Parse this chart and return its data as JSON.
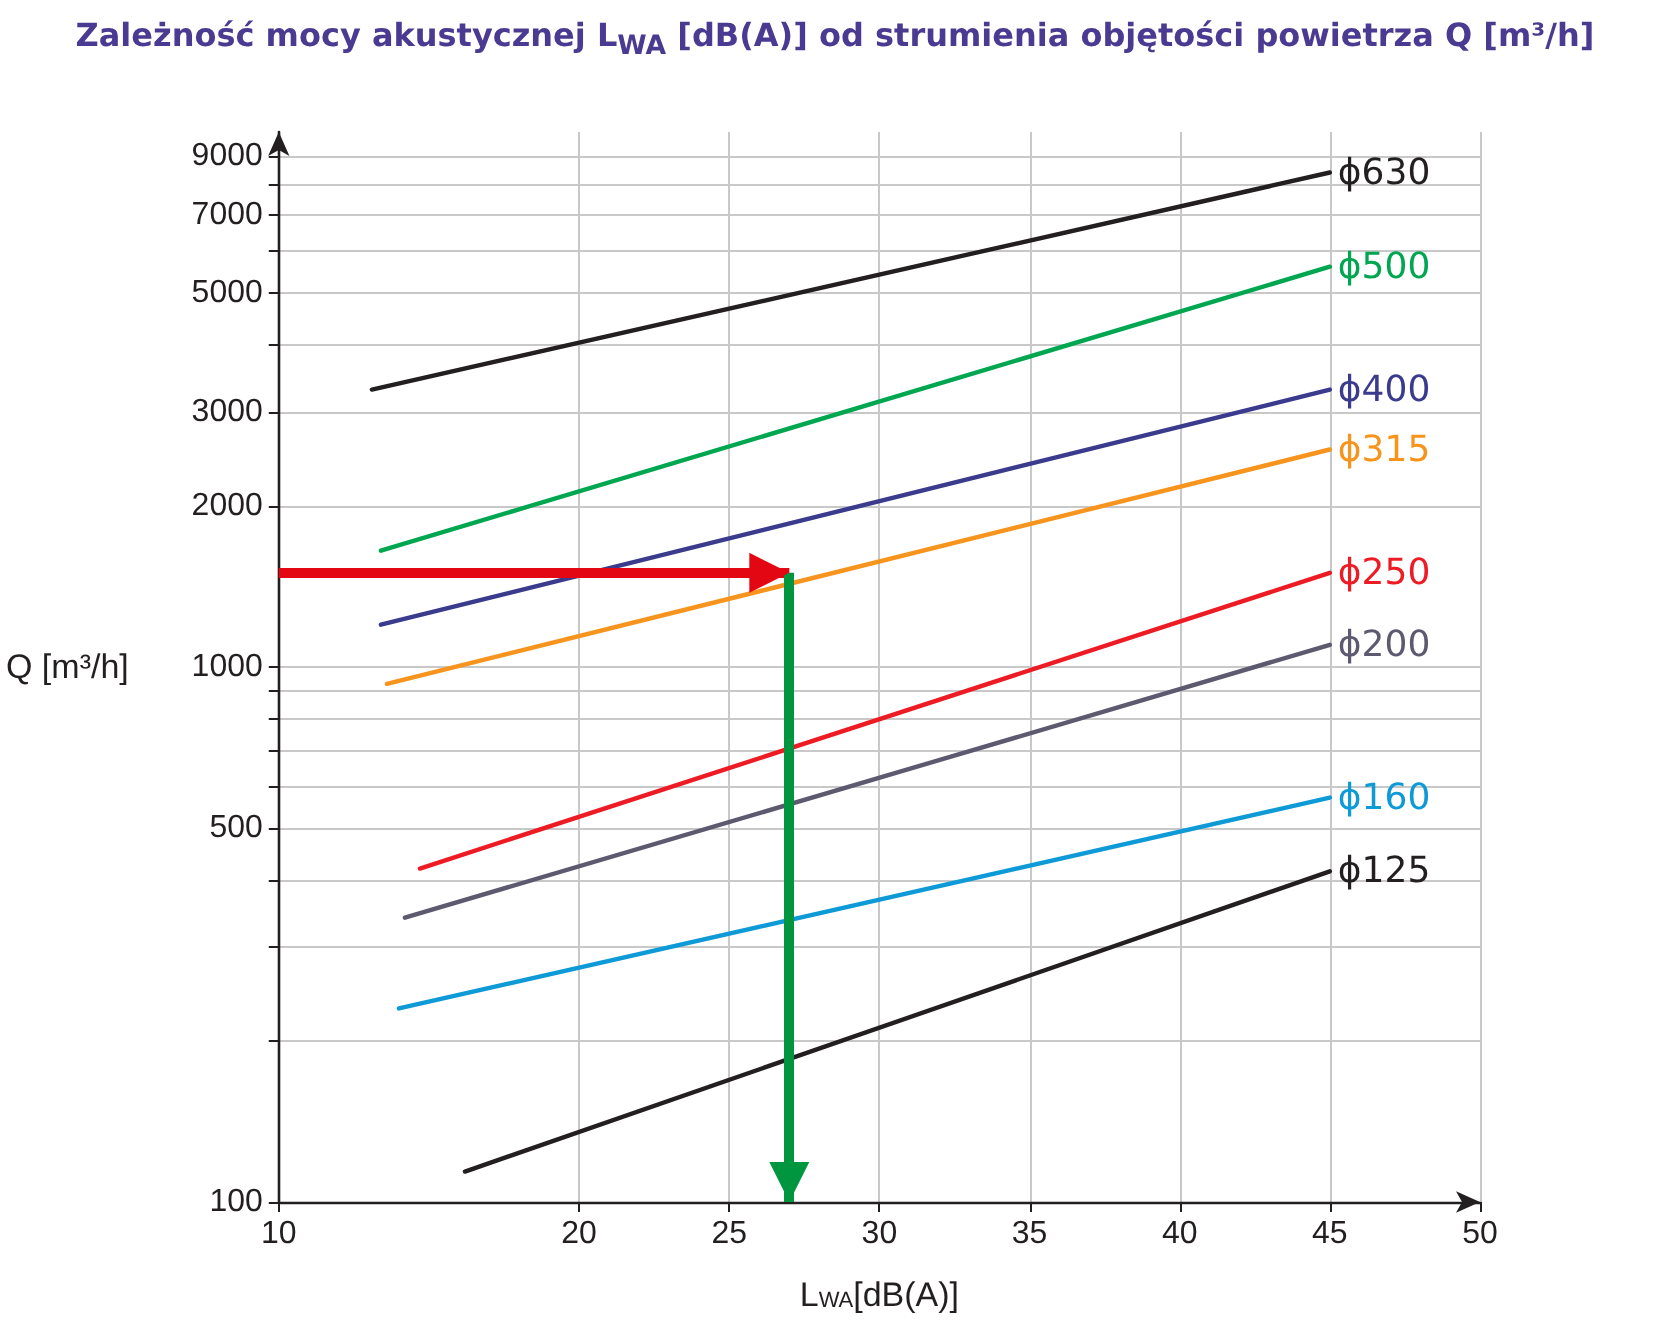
{
  "chart_data": {
    "type": "line",
    "title": "Zależność mocy akustycznej L$_{WA}$ [dB(A)] od strumienia objętości powietrza Q [m³/h]",
    "xlabel": "L$_{WA}$[dB(A)]",
    "ylabel": "Q [m³/h]",
    "xlim": [
      10,
      50
    ],
    "xticks": [
      10,
      20,
      25,
      30,
      35,
      40,
      45,
      50
    ],
    "ylim": [
      100,
      10000
    ],
    "log": "y",
    "yticks": [
      100,
      {
        "value": 200,
        "label": null
      },
      {
        "value": 300,
        "label": null
      },
      {
        "value": 400,
        "label": null
      },
      500,
      {
        "value": 600,
        "label": null
      },
      {
        "value": 700,
        "label": null
      },
      {
        "value": 800,
        "label": null
      },
      {
        "value": 900,
        "label": null
      },
      1000,
      2000,
      3000,
      {
        "value": 4000,
        "label": null
      },
      5000,
      {
        "value": 6000,
        "label": null
      },
      7000,
      {
        "value": 8000,
        "label": null
      },
      9000
    ],
    "grid": true,
    "legend": false,
    "series": [
      {
        "name": "ϕ630",
        "color": "#231f20",
        "x": [
          13.1,
          45
        ],
        "values": [
          3300,
          8400
        ]
      },
      {
        "name": "ϕ500",
        "color": "#00a650",
        "x": [
          13.4,
          45
        ],
        "values": [
          1650,
          5600
        ]
      },
      {
        "name": "ϕ400",
        "color": "#3b3b8e",
        "x": [
          13.4,
          45
        ],
        "values": [
          1200,
          3300
        ]
      },
      {
        "name": "ϕ315",
        "color": "#f7941d",
        "x": [
          13.6,
          45
        ],
        "values": [
          930,
          2550
        ]
      },
      {
        "name": "ϕ250",
        "color": "#ed1c24",
        "x": [
          14.7,
          45
        ],
        "values": [
          420,
          1500
        ]
      },
      {
        "name": "ϕ200",
        "color": "#5d5a70",
        "x": [
          14.2,
          45
        ],
        "values": [
          340,
          1100
        ]
      },
      {
        "name": "ϕ160",
        "color": "#0e9ad7",
        "x": [
          14.0,
          45
        ],
        "values": [
          230,
          570
        ]
      },
      {
        "name": "ϕ125",
        "color": "#231f20",
        "x": [
          16.2,
          45
        ],
        "values": [
          114,
          415
        ]
      }
    ],
    "ref_lines": [
      {
        "axis": "y",
        "value": 1500,
        "color": "#e30613"
      },
      {
        "axis": "x",
        "value": 27,
        "color": "#00963f"
      }
    ]
  }
}
